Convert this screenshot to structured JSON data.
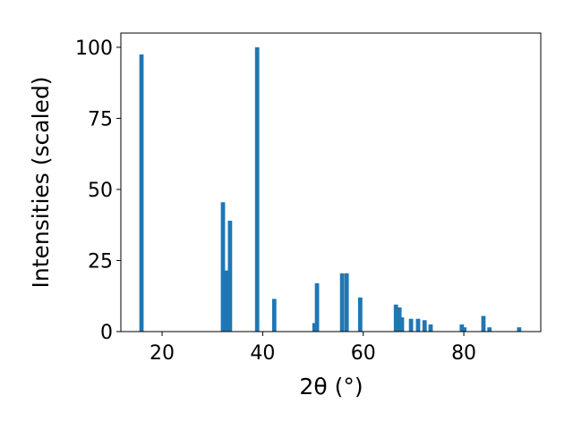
{
  "chart_data": {
    "type": "bar",
    "x_label": "2θ (°)",
    "y_label": "Intensities (scaled)",
    "x": [
      15.9,
      32.1,
      32.8,
      33.5,
      38.9,
      42.3,
      50.3,
      50.8,
      55.8,
      56.7,
      59.4,
      66.5,
      67.2,
      67.7,
      69.5,
      70.9,
      72.2,
      73.4,
      79.6,
      80.1,
      83.9,
      85.1,
      91.0
    ],
    "values": [
      97.5,
      45.5,
      21.5,
      39,
      100,
      11.5,
      3,
      17,
      20.5,
      20.5,
      12,
      9.5,
      8.5,
      5,
      4.5,
      4.5,
      4,
      2.5,
      2.5,
      1.5,
      5.5,
      1.5,
      1.5
    ],
    "color": "#1f77b4",
    "xlim": [
      11.8,
      95.3
    ],
    "ylim": [
      0,
      105
    ],
    "xticks": [
      20,
      40,
      60,
      80
    ],
    "yticks": [
      0,
      25,
      50,
      75,
      100
    ]
  }
}
